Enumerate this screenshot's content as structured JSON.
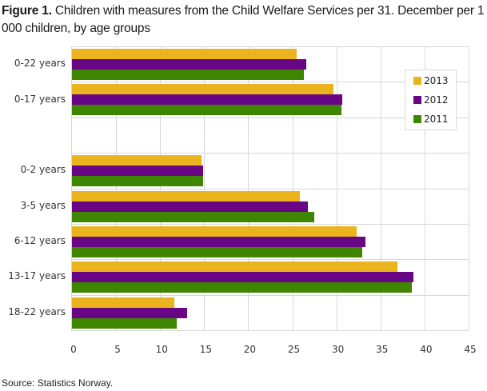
{
  "title": {
    "prefix": "Figure 1.",
    "text": " Children with measures from the Child Welfare Services per 31. December per 1 000 children, by age groups"
  },
  "source": "Source: Statistics Norway.",
  "colors": {
    "2013": "#ebb41e",
    "2012": "#680686",
    "2011": "#3f8600",
    "grid": "#d8d8d8"
  },
  "legend": [
    {
      "label": "2013",
      "color": "#ebb41e"
    },
    {
      "label": "2012",
      "color": "#680686"
    },
    {
      "label": "2011",
      "color": "#3f8600"
    }
  ],
  "x_ticks": [
    "0",
    "5",
    "10",
    "15",
    "20",
    "25",
    "30",
    "35",
    "40",
    "45"
  ],
  "chart_data": {
    "type": "bar",
    "orientation": "horizontal",
    "title": "Figure 1. Children with measures from the Child Welfare Services per 31. December per 1 000 children, by age groups",
    "xlabel": "",
    "ylabel": "",
    "xlim": [
      0,
      45
    ],
    "grid": true,
    "legend_position": "upper right (inside plot)",
    "categories": [
      "0-22 years",
      "0-17 years",
      "",
      "0-2 years",
      "3-5 years",
      "6-12 years",
      "13-17 years",
      "18-22 years"
    ],
    "series": [
      {
        "name": "2013",
        "color": "#ebb41e",
        "values": [
          25.5,
          29.7,
          null,
          14.7,
          25.9,
          32.3,
          36.9,
          11.6
        ]
      },
      {
        "name": "2012",
        "color": "#680686",
        "values": [
          26.6,
          30.7,
          null,
          14.9,
          26.8,
          33.3,
          38.7,
          13.1
        ]
      },
      {
        "name": "2011",
        "color": "#3f8600",
        "values": [
          26.3,
          30.6,
          null,
          14.9,
          27.5,
          32.9,
          38.6,
          11.9
        ]
      }
    ]
  }
}
